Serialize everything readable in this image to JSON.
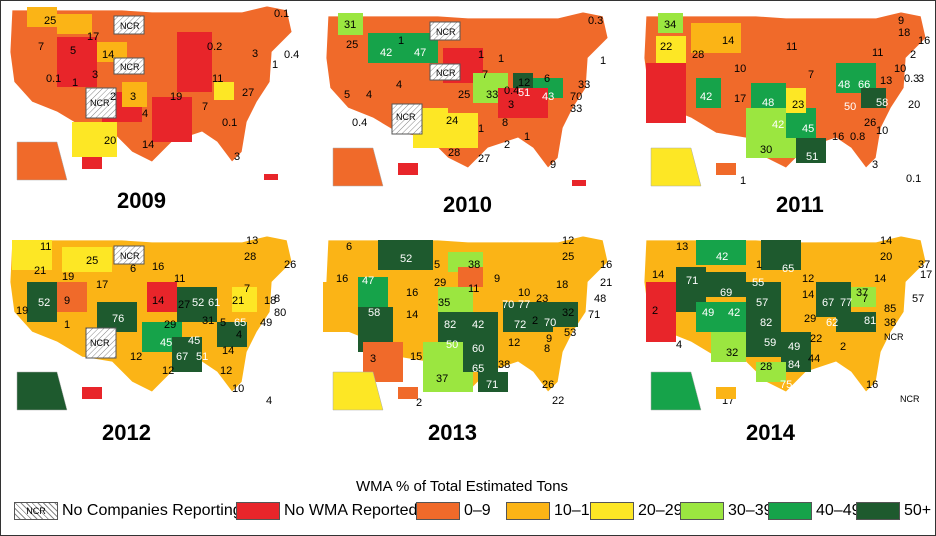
{
  "legend": {
    "title": "WMA % of Total Estimated Tons",
    "items": [
      {
        "label": "No Companies Reporting",
        "color": "hatch",
        "swatch_text": "NCR"
      },
      {
        "label": "No WMA Reported",
        "color": "#e8252a"
      },
      {
        "label": "0–9",
        "color": "#f06a2a"
      },
      {
        "label": "10–19",
        "color": "#fbb416"
      },
      {
        "label": "20–29",
        "color": "#fde725"
      },
      {
        "label": "30–39",
        "color": "#9be640"
      },
      {
        "label": "40–49",
        "color": "#16a34a"
      },
      {
        "label": "50+",
        "color": "#1e5a2e"
      }
    ]
  },
  "maps": [
    {
      "year": "2009",
      "labels": [
        "25",
        "17",
        "NCR",
        "7",
        "5",
        "14",
        "0.1",
        "0.4",
        "1",
        "0.1",
        "3",
        "0.2",
        "3",
        "NCR",
        "8",
        "0.3",
        "7",
        "1",
        "1",
        "6",
        "11",
        "17",
        "3",
        "2",
        "19",
        "27",
        "6",
        "4",
        "1",
        "0.1",
        "20",
        "14",
        "3",
        "NCR",
        "4",
        "1"
      ]
    },
    {
      "year": "2010",
      "labels": [
        "31",
        "1",
        "NCR",
        "0.3",
        "25",
        "42",
        "47",
        "1",
        "1",
        "4",
        "NCR",
        "7",
        "12",
        "6",
        "1",
        "33",
        "0.4",
        "51",
        "70",
        "5",
        "4",
        "25",
        "33",
        "43",
        "33",
        "0.4",
        "24",
        "3",
        "1",
        "8",
        "2",
        "1",
        "28",
        "27",
        "9",
        "6"
      ]
    },
    {
      "year": "2011",
      "labels": [
        "34",
        "9",
        "18",
        "16",
        "22",
        "28",
        "14",
        "11",
        "11",
        "2",
        "10",
        "10",
        "7",
        "48",
        "66",
        "13",
        "0.3",
        "3",
        "42",
        "17",
        "48",
        "23",
        "20",
        "50",
        "58",
        "42",
        "45",
        "16",
        "0.8",
        "10",
        "30",
        "51",
        "26",
        "3",
        "24",
        "1",
        "0.1"
      ]
    },
    {
      "year": "2012",
      "labels": [
        "11",
        "25",
        "NCR",
        "13",
        "28",
        "26",
        "21",
        "19",
        "17",
        "6",
        "11",
        "16",
        "7",
        "8",
        "9",
        "52",
        "14",
        "27",
        "52",
        "61",
        "21",
        "18",
        "80",
        "19",
        "76",
        "29",
        "31",
        "5",
        "65",
        "49",
        "1",
        "NCR",
        "45",
        "45",
        "4",
        "12",
        "67",
        "51",
        "14",
        "12",
        "12",
        "10",
        "54",
        "4"
      ]
    },
    {
      "year": "2013",
      "labels": [
        "6",
        "52",
        "5",
        "38",
        "12",
        "25",
        "16",
        "16",
        "10",
        "47",
        "29",
        "11",
        "9",
        "18",
        "21",
        "10",
        "58",
        "14",
        "35",
        "82",
        "70",
        "77",
        "23",
        "48",
        "2",
        "42",
        "72",
        "70",
        "32",
        "53",
        "71",
        "50",
        "60",
        "12",
        "9",
        "8",
        "3",
        "15",
        "37",
        "65",
        "38",
        "71",
        "26",
        "27",
        "2",
        "22"
      ]
    },
    {
      "year": "2014",
      "labels": [
        "13",
        "42",
        "1",
        "65",
        "14",
        "20",
        "37",
        "17",
        "14",
        "71",
        "55",
        "12",
        "14",
        "7",
        "57",
        "69",
        "57",
        "67",
        "77",
        "37",
        "85",
        "2",
        "49",
        "42",
        "82",
        "62",
        "29",
        "38",
        "81",
        "59",
        "49",
        "22",
        "NCR",
        "4",
        "32",
        "28",
        "84",
        "44",
        "2",
        "75",
        "16",
        "45",
        "17",
        "NCR"
      ]
    }
  ]
}
